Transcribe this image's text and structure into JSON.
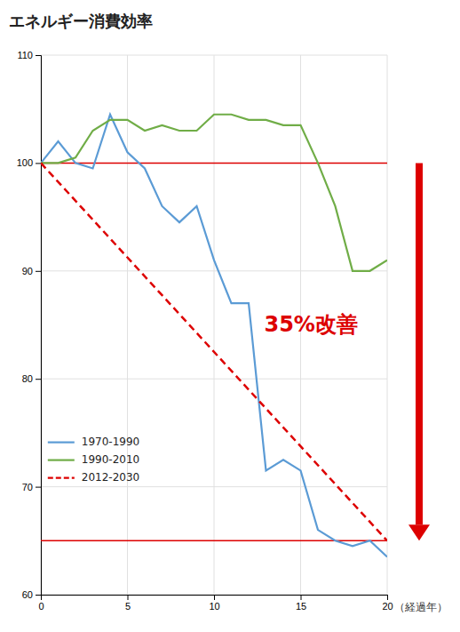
{
  "chart_data": {
    "type": "line",
    "title": "エネルギー消費効率",
    "x_label": "（経過年）",
    "x": [
      0,
      1,
      2,
      3,
      4,
      5,
      6,
      7,
      8,
      9,
      10,
      11,
      12,
      13,
      14,
      15,
      16,
      17,
      18,
      19,
      20
    ],
    "series": [
      {
        "name": "1970-1990",
        "color": "#5b9bd5",
        "line_style": "solid",
        "values": [
          100,
          102,
          100,
          99.5,
          104.5,
          101,
          99.5,
          96,
          94.5,
          96,
          91,
          87,
          87,
          71.5,
          72.5,
          71.5,
          66,
          65,
          64.5,
          65,
          63.5
        ]
      },
      {
        "name": "1990-2010",
        "color": "#70ad47",
        "line_style": "solid",
        "values": [
          100,
          100,
          100.5,
          103,
          104,
          104,
          103,
          103.5,
          103,
          103,
          104.5,
          104.5,
          104,
          104,
          103.5,
          103.5,
          100,
          96,
          90,
          90,
          91
        ]
      },
      {
        "name": "2012-2030",
        "color": "#dd0000",
        "line_style": "dashed",
        "x": [
          0,
          20
        ],
        "values": [
          100,
          65
        ]
      }
    ],
    "xlim": [
      0,
      20
    ],
    "ylim": [
      60,
      110
    ],
    "xticks": [
      0,
      5,
      10,
      15,
      20
    ],
    "yticks": [
      60,
      70,
      80,
      90,
      100,
      110
    ],
    "grid": true,
    "legend": "lower left",
    "reference_lines": [
      {
        "value": 100,
        "color": "#dd0000"
      },
      {
        "value": 65,
        "color": "#dd0000"
      }
    ],
    "annotations": [
      {
        "text": "35%改善",
        "color": "#dd0000"
      }
    ],
    "arrow": {
      "from": 100,
      "to": 65,
      "color": "#dd0000"
    }
  }
}
